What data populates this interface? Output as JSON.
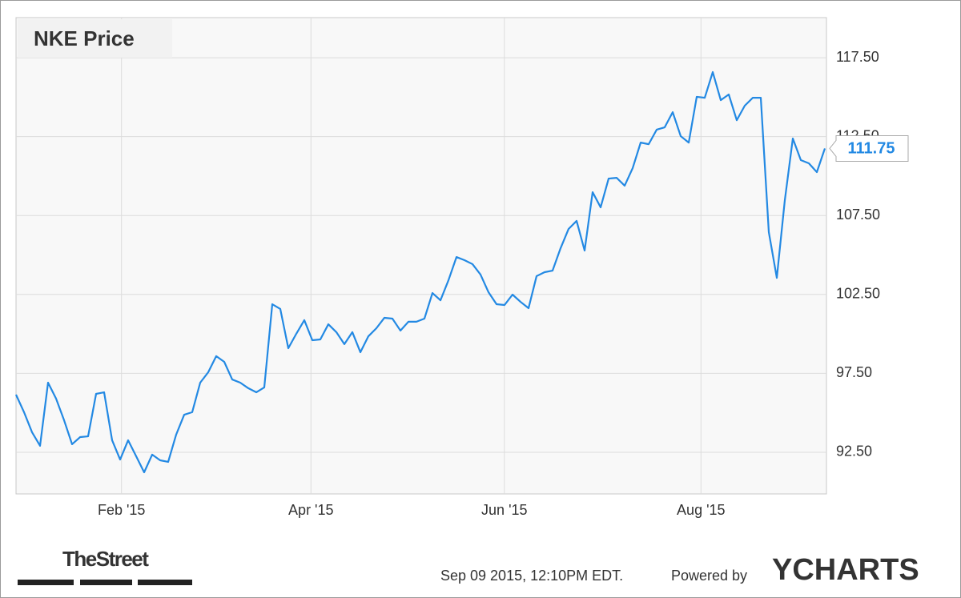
{
  "chart_data": {
    "type": "line",
    "title": "NKE Price",
    "series": [
      {
        "name": "NKE",
        "color": "#2389e3",
        "values": [
          96.15,
          95.04,
          93.77,
          92.91,
          96.91,
          95.9,
          94.53,
          93.01,
          93.46,
          93.51,
          96.2,
          96.3,
          93.26,
          92.04,
          93.26,
          92.25,
          91.23,
          92.35,
          91.99,
          91.89,
          93.62,
          94.88,
          95.04,
          96.91,
          97.57,
          98.59,
          98.23,
          97.11,
          96.91,
          96.56,
          96.3,
          96.61,
          101.88,
          101.58,
          99.09,
          100.01,
          100.87,
          99.6,
          99.65,
          100.61,
          100.11,
          99.35,
          100.11,
          98.84,
          99.85,
          100.36,
          101.02,
          100.97,
          100.21,
          100.77,
          100.77,
          100.97,
          102.59,
          102.13,
          103.4,
          104.87,
          104.67,
          104.42,
          103.76,
          102.64,
          101.88,
          101.83,
          102.49,
          102.03,
          101.63,
          103.66,
          103.91,
          104.01,
          105.43,
          106.65,
          107.16,
          105.28,
          108.98,
          108.02,
          109.84,
          109.89,
          109.39,
          110.5,
          112.12,
          112.02,
          112.94,
          113.09,
          114.05,
          112.53,
          112.12,
          115.02,
          114.96,
          116.59,
          114.81,
          115.17,
          113.54,
          114.46,
          114.96,
          114.96,
          106.45,
          103.55,
          108.47,
          112.38,
          111.01,
          110.81,
          110.25,
          111.75
        ]
      }
    ],
    "xlim": [
      0,
      101.2
    ],
    "xticks": [
      {
        "value": 13.17,
        "label": "Feb '15"
      },
      {
        "value": 36.83,
        "label": "Apr '15"
      },
      {
        "value": 60.98,
        "label": "Jun '15"
      },
      {
        "value": 85.53,
        "label": "Aug '15"
      }
    ],
    "ylim": [
      89.86,
      120.04
    ],
    "yticks": [
      {
        "value": 92.5,
        "label": "92.50"
      },
      {
        "value": 97.5,
        "label": "97.50"
      },
      {
        "value": 102.5,
        "label": "102.50"
      },
      {
        "value": 107.5,
        "label": "107.50"
      },
      {
        "value": 112.5,
        "label": "112.50"
      },
      {
        "value": 117.5,
        "label": "117.50"
      }
    ],
    "grid": true
  },
  "footer": {
    "source_logo": "TheStreet",
    "timestamp": "Sep 09 2015, 12:10PM EDT.",
    "powered_by": "Powered by",
    "brand": "YCHARTS"
  }
}
